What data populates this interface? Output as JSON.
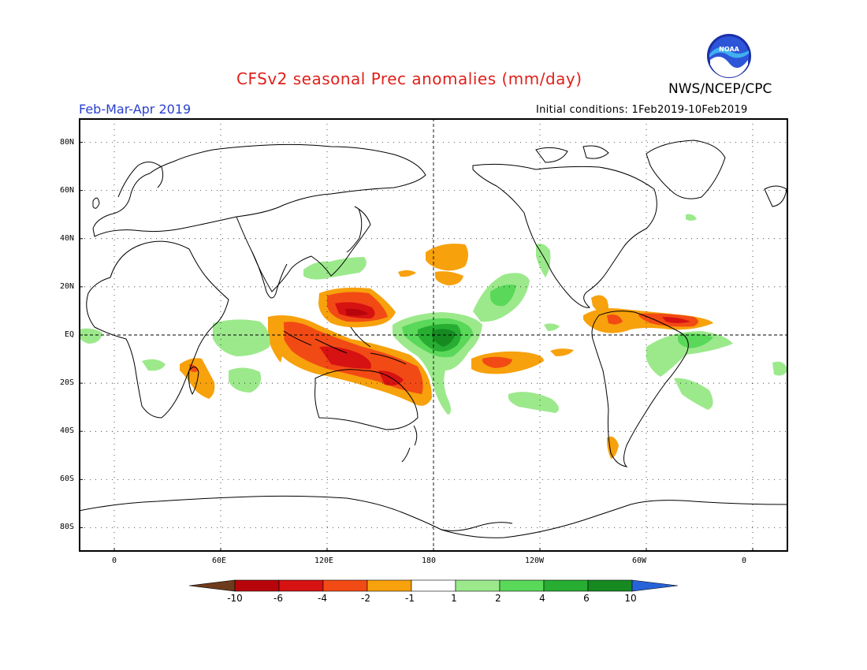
{
  "header": {
    "title": "CFSv2 seasonal Prec anomalies (mm/day)",
    "org": "NWS/NCEP/CPC",
    "season": "Feb-Mar-Apr 2019",
    "initial_conditions": "Initial conditions: 1Feb2019-10Feb2019",
    "logo_text": "NOAA"
  },
  "map": {
    "lat_labels": [
      "80N",
      "60N",
      "40N",
      "20N",
      "EQ",
      "20S",
      "40S",
      "60S",
      "80S"
    ],
    "lon_labels": [
      "0",
      "60E",
      "120E",
      "180",
      "120W",
      "60W",
      "0"
    ],
    "lat_range": [
      -90,
      90
    ],
    "lon_range": [
      -20,
      380
    ]
  },
  "colorbar": {
    "labels": [
      "-10",
      "-6",
      "-4",
      "-2",
      "-1",
      "1",
      "2",
      "4",
      "6",
      "10"
    ],
    "colors": [
      "#6e3b1c",
      "#b8050c",
      "#d61212",
      "#f24a15",
      "#f7a10c",
      "#ffffff",
      "#9ce98c",
      "#5ad85a",
      "#27ae32",
      "#168a20",
      "#2763d8"
    ],
    "legend_colors": {
      "dry_strong": "#d61212",
      "dry_mid": "#f24a15",
      "dry_weak": "#f7a10c",
      "wet_weak": "#9ce98c",
      "wet_mid": "#5ad85a",
      "wet_strong": "#27ae32"
    }
  }
}
